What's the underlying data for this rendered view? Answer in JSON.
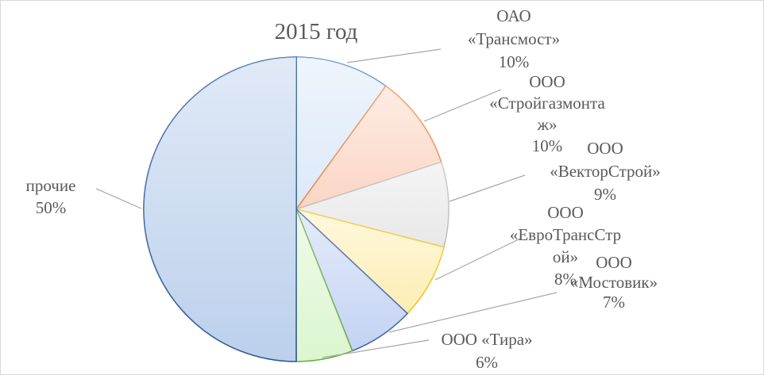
{
  "chart_data": {
    "type": "pie",
    "title": "2015 год",
    "slices": [
      {
        "name": "ОАО «Трансмост»",
        "value": 10,
        "label_lines": [
          "ОАО",
          "«Трансмост»",
          "10%"
        ],
        "color": "#dbe9f8",
        "edge": "#4d8ad1"
      },
      {
        "name": "ООО «Стройгазмонтаж»",
        "value": 10,
        "label_lines": [
          "ООО",
          "«Стройгазмонта",
          "ж»",
          "10%"
        ],
        "color": "#fbd5c4",
        "edge": "#ed8a4a"
      },
      {
        "name": "ООО «ВекторСтрой»",
        "value": 9,
        "label_lines": [
          "ООО",
          "«ВекторСтрой»",
          "9%"
        ],
        "color": "#e8e8e8",
        "edge": "#bdbdbd"
      },
      {
        "name": "ООО «ЕвроТрансСтрой»",
        "value": 8,
        "label_lines": [
          "ООО",
          "«ЕвроТрансСтр",
          "ой»",
          "8%"
        ],
        "color": "#fdeeb4",
        "edge": "#f5c21b"
      },
      {
        "name": "ООО «Мостовик»",
        "value": 7,
        "label_lines": [
          "ООО",
          "«Мостовик»",
          "7%"
        ],
        "color": "#c4d3f3",
        "edge": "#3d62b0"
      },
      {
        "name": "ООО «Тира»",
        "value": 6,
        "label_lines": [
          "ООО «Тира»",
          "6%"
        ],
        "color": "#dbf6cf",
        "edge": "#72ad47"
      },
      {
        "name": "прочие",
        "value": 50,
        "label_lines": [
          "прочие",
          "50%"
        ],
        "color": "#bcd0ec",
        "edge": "#2e5b93"
      }
    ],
    "legend": "none"
  }
}
